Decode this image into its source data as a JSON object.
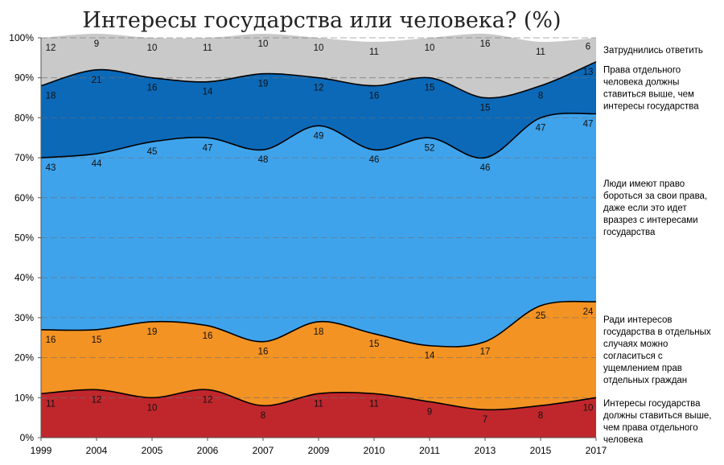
{
  "chart_data": {
    "type": "area",
    "title": "Интересы государства или человека? (%)",
    "x": [
      "1999",
      "2004",
      "2005",
      "2006",
      "2007",
      "2009",
      "2010",
      "2011",
      "2013",
      "2015",
      "2017"
    ],
    "y_ticks": [
      "0%",
      "10%",
      "20%",
      "30%",
      "40%",
      "50%",
      "60%",
      "70%",
      "80%",
      "90%",
      "100%"
    ],
    "ylim": [
      0,
      100
    ],
    "stacked": true,
    "grid": "dashed horizontal",
    "legend_position": "right",
    "series": [
      {
        "name": "Интересы государства должны ставиться выше, чем права отдельного человека",
        "color": "#c0272d",
        "values": [
          11,
          12,
          10,
          12,
          8,
          11,
          11,
          9,
          7,
          8,
          10
        ]
      },
      {
        "name": "Ради интересов государства в отдельных случаях можно согласиться с ущемлением прав отдельных граждан",
        "color": "#f39323",
        "values": [
          16,
          15,
          19,
          16,
          16,
          18,
          15,
          14,
          17,
          25,
          24
        ]
      },
      {
        "name": "Люди имеют право бороться за свои права, даже если это идет вразрез с интересами государства",
        "color": "#3fa3ec",
        "values": [
          43,
          44,
          45,
          47,
          48,
          49,
          46,
          52,
          46,
          47,
          47
        ]
      },
      {
        "name": "Права отдельного человека должны ставиться выше, чем интересы государства",
        "color": "#0c69b8",
        "values": [
          18,
          21,
          16,
          14,
          19,
          12,
          16,
          15,
          15,
          8,
          13
        ]
      },
      {
        "name": "Затруднились ответить",
        "color": "#c9c9c9",
        "values": [
          12,
          9,
          10,
          11,
          10,
          10,
          11,
          10,
          16,
          11,
          6
        ]
      }
    ],
    "legend_lines": [
      [
        "Интересы государства",
        "должны ставиться выше,",
        "чем права отдельного",
        "человека"
      ],
      [
        "Ради интересов",
        "государства в отдельных",
        "случаях можно",
        "согласиться с",
        "ущемлением прав",
        "отдельных граждан"
      ],
      [
        "Люди имеют право",
        "бороться за свои права,",
        "даже если это идет",
        "вразрез с интересами",
        "государства"
      ],
      [
        "Права отдельного",
        "человека должны",
        "ставиться выше, чем",
        "интересы государства"
      ],
      [
        "Затруднились ответить"
      ]
    ]
  }
}
